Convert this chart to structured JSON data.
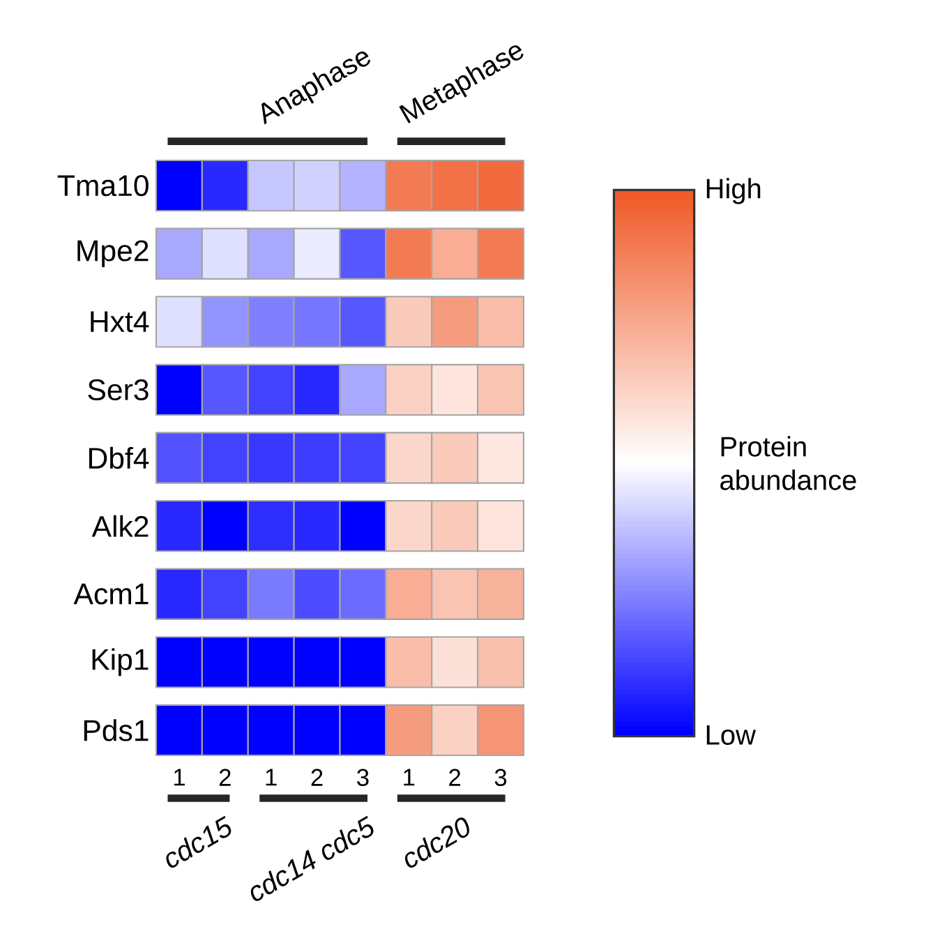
{
  "chart_data": {
    "type": "heatmap",
    "categories": [
      "1",
      "2",
      "1",
      "2",
      "3",
      "1",
      "2",
      "3"
    ],
    "y_categories": [
      "Tma10",
      "Mpe2",
      "Hxt4",
      "Ser3",
      "Dbf4",
      "Alk2",
      "Acm1",
      "Kip1",
      "Pds1"
    ],
    "cells": [
      [
        0.0,
        0.08,
        0.39,
        0.41,
        0.35,
        0.9,
        0.93,
        0.95
      ],
      [
        0.33,
        0.44,
        0.33,
        0.46,
        0.17,
        0.9,
        0.75,
        0.9
      ],
      [
        0.44,
        0.29,
        0.25,
        0.23,
        0.17,
        0.66,
        0.8,
        0.7
      ],
      [
        0.0,
        0.17,
        0.13,
        0.08,
        0.33,
        0.64,
        0.58,
        0.68
      ],
      [
        0.16,
        0.13,
        0.11,
        0.12,
        0.13,
        0.62,
        0.66,
        0.57
      ],
      [
        0.08,
        0.0,
        0.09,
        0.08,
        0.0,
        0.62,
        0.66,
        0.58
      ],
      [
        0.08,
        0.13,
        0.24,
        0.15,
        0.21,
        0.75,
        0.68,
        0.73
      ],
      [
        0.0,
        0.0,
        0.0,
        0.0,
        0.0,
        0.7,
        0.59,
        0.69
      ],
      [
        0.0,
        0.0,
        0.0,
        0.0,
        0.0,
        0.8,
        0.64,
        0.82
      ]
    ],
    "clim": [
      0,
      1
    ],
    "cticks": [
      {
        "value": 0,
        "label": "Low"
      },
      {
        "value": 1,
        "label": "High"
      }
    ],
    "clabel": "Protein abundance",
    "annotations": [
      "Anaphase",
      "Metaphase",
      "cdc15",
      "cdc14 cdc5",
      "cdc20"
    ]
  }
}
